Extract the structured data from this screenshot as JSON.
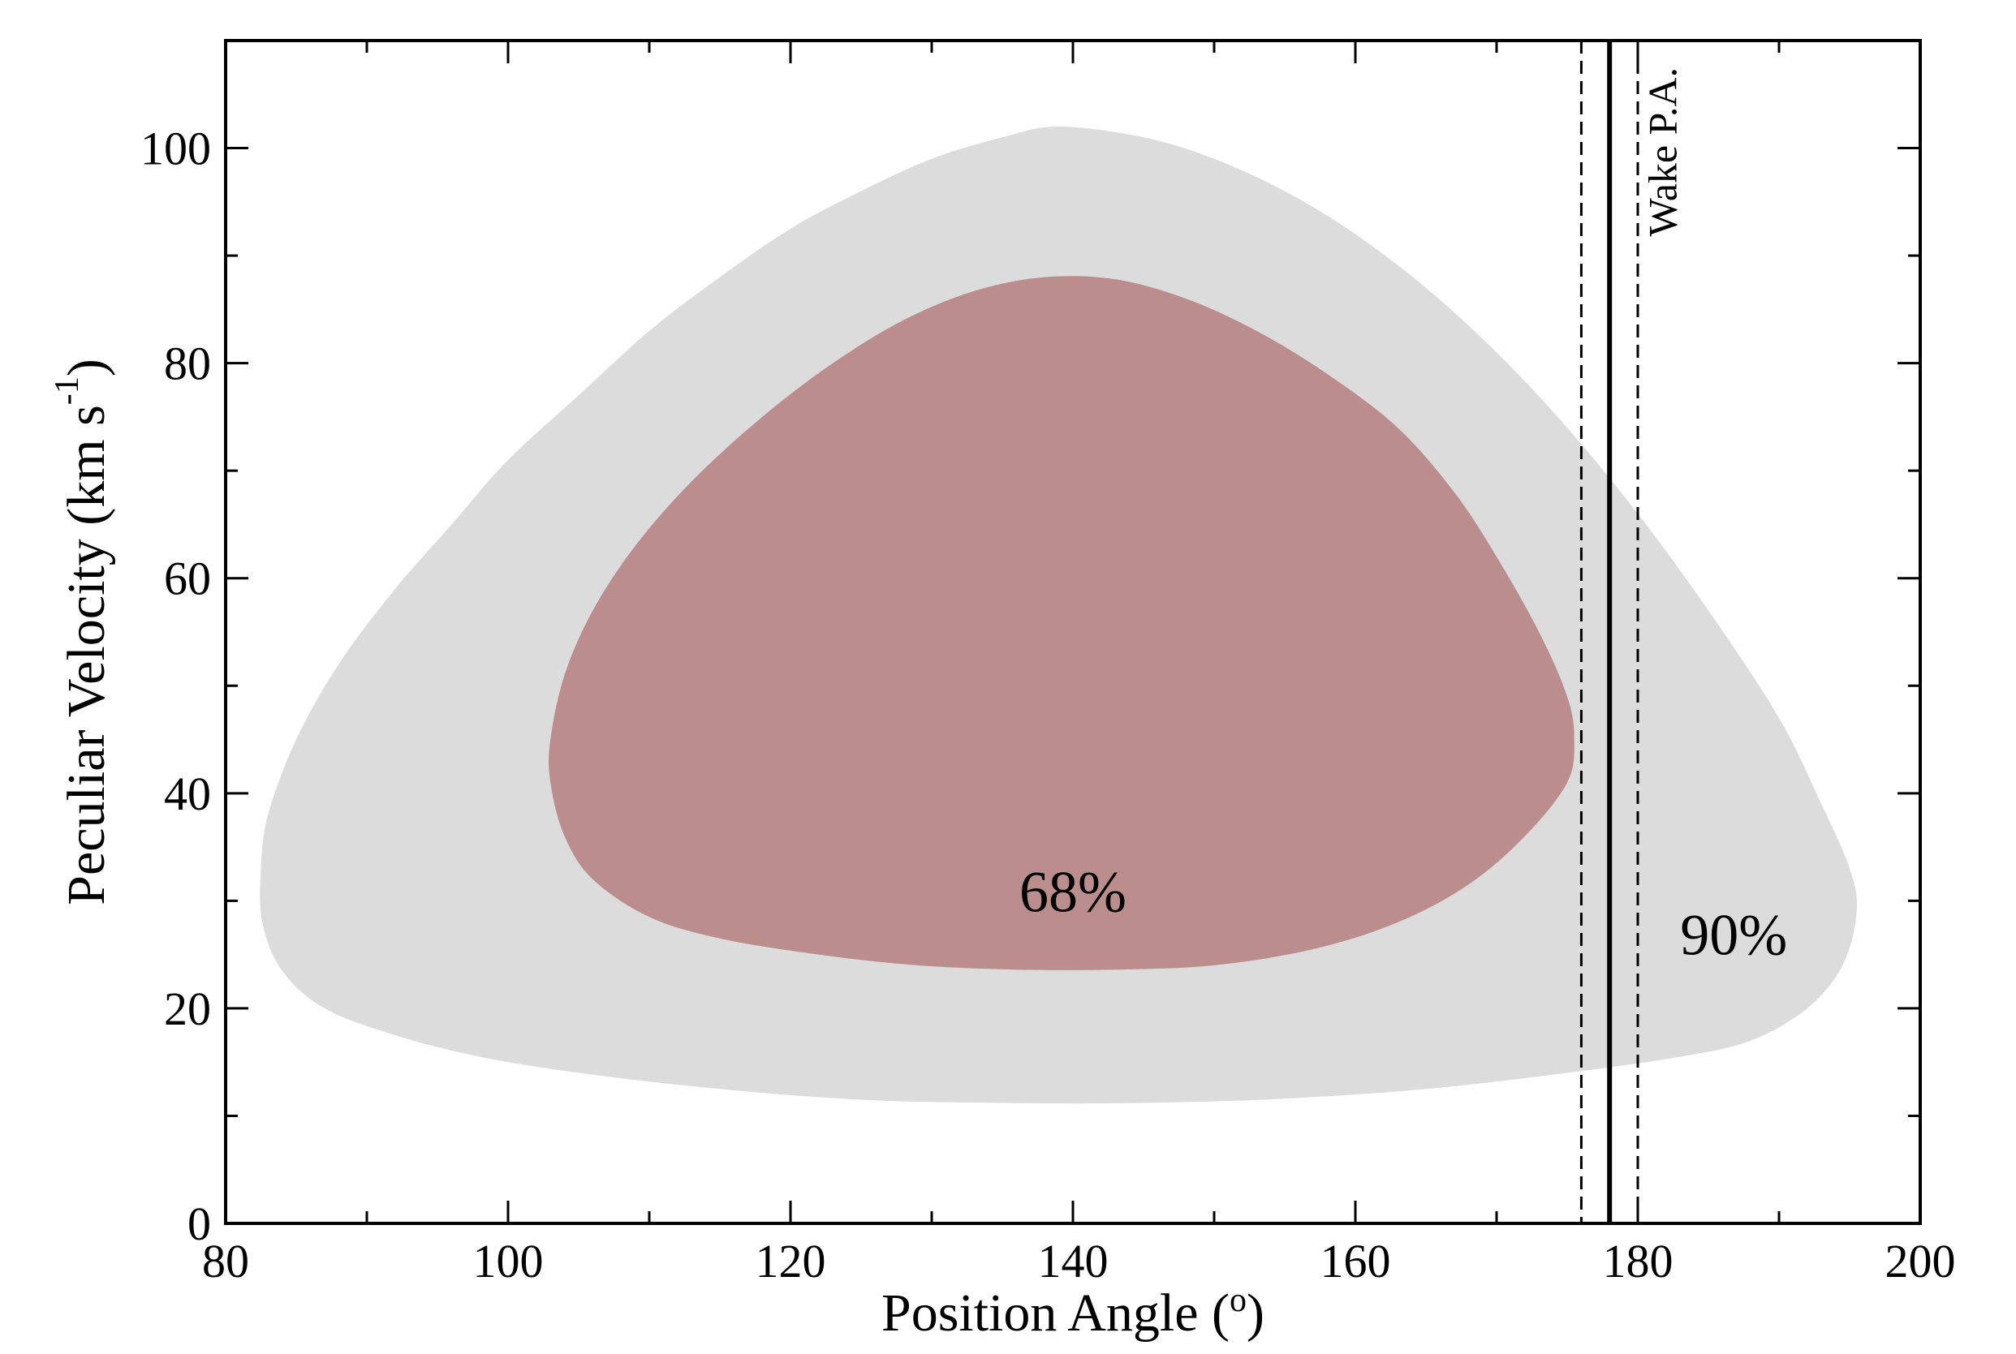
{
  "chart_data": {
    "type": "area",
    "xlabel": "Position Angle (",
    "xlabel_sup": "o",
    "xlabel_end": ")",
    "ylabel": "Peculiar Velocity  (km s",
    "ylabel_sup": "-1",
    "ylabel_end": ")",
    "xlim": [
      80,
      200
    ],
    "ylim": [
      0,
      110
    ],
    "x_ticks": [
      80,
      100,
      120,
      140,
      160,
      180,
      200
    ],
    "y_ticks": [
      0,
      20,
      40,
      60,
      80,
      100
    ],
    "x_minor_step": 10,
    "y_minor_step": 10,
    "grid": false,
    "colors": {
      "region90": "#dcdcdc",
      "region68": "#bb8e8d",
      "lines": "#000000"
    },
    "regions": [
      {
        "label": "90%",
        "label_at": [
          183,
          25
        ],
        "points": [
          [
            82.5,
            33
          ],
          [
            83,
            38
          ],
          [
            85,
            45
          ],
          [
            88,
            52
          ],
          [
            92,
            59
          ],
          [
            96,
            65
          ],
          [
            100,
            71
          ],
          [
            105,
            77
          ],
          [
            110,
            83
          ],
          [
            115,
            88
          ],
          [
            120,
            92.5
          ],
          [
            125,
            96
          ],
          [
            130,
            99
          ],
          [
            135,
            101
          ],
          [
            139,
            102
          ],
          [
            145,
            101
          ],
          [
            150,
            99
          ],
          [
            155,
            96
          ],
          [
            160,
            92
          ],
          [
            165,
            87
          ],
          [
            170,
            81
          ],
          [
            175,
            74
          ],
          [
            180,
            66
          ],
          [
            185,
            57
          ],
          [
            190,
            47
          ],
          [
            193,
            39
          ],
          [
            195,
            33
          ],
          [
            195.5,
            29
          ],
          [
            194.5,
            24
          ],
          [
            192,
            20
          ],
          [
            188,
            17
          ],
          [
            183,
            15.5
          ],
          [
            175,
            14
          ],
          [
            165,
            12.5
          ],
          [
            155,
            11.6
          ],
          [
            145,
            11.2
          ],
          [
            135,
            11.2
          ],
          [
            125,
            11.5
          ],
          [
            115,
            12.5
          ],
          [
            105,
            14
          ],
          [
            98,
            15.5
          ],
          [
            92,
            17.5
          ],
          [
            87,
            20
          ],
          [
            84,
            23.5
          ],
          [
            82.6,
            28
          ]
        ]
      },
      {
        "label": "68%",
        "label_at": [
          140,
          29
        ],
        "points": [
          [
            103,
            45
          ],
          [
            104,
            51
          ],
          [
            106,
            57
          ],
          [
            109,
            63
          ],
          [
            113,
            69
          ],
          [
            118,
            75
          ],
          [
            123,
            80
          ],
          [
            128,
            84
          ],
          [
            133,
            86.7
          ],
          [
            138,
            88
          ],
          [
            143,
            87.8
          ],
          [
            148,
            86
          ],
          [
            153,
            83
          ],
          [
            158,
            79
          ],
          [
            163,
            74
          ],
          [
            167,
            68
          ],
          [
            170,
            62
          ],
          [
            173,
            55
          ],
          [
            175,
            49
          ],
          [
            175.5,
            45
          ],
          [
            175,
            41
          ],
          [
            172,
            36
          ],
          [
            168,
            31.5
          ],
          [
            163,
            28
          ],
          [
            157,
            25.5
          ],
          [
            150,
            24
          ],
          [
            143,
            23.6
          ],
          [
            136,
            23.6
          ],
          [
            129,
            24
          ],
          [
            122,
            25
          ],
          [
            115,
            26.5
          ],
          [
            110,
            28.5
          ],
          [
            106,
            32
          ],
          [
            104,
            36
          ],
          [
            103,
            41
          ]
        ]
      }
    ],
    "vlines": [
      {
        "x": 178,
        "style": "solid"
      },
      {
        "x": 176,
        "style": "dashed"
      },
      {
        "x": 180,
        "style": "dashed"
      }
    ],
    "vline_label": "Wake P.A."
  }
}
